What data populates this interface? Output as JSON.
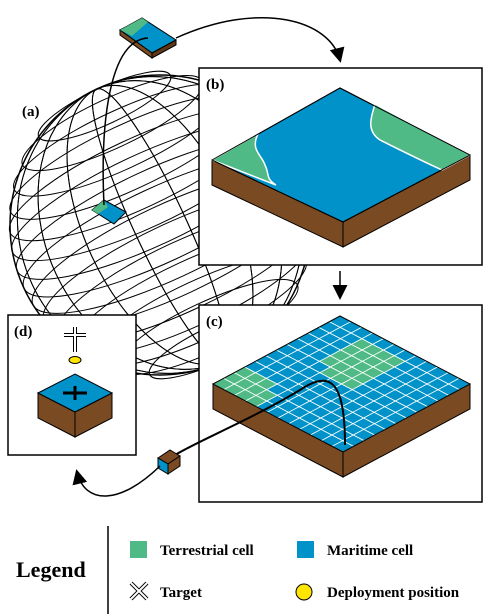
{
  "panels": {
    "a": "(a)",
    "b": "(b)",
    "c": "(c)",
    "d": "(d)"
  },
  "legend": {
    "title": "Legend",
    "items": [
      {
        "label": "Terrestrial cell"
      },
      {
        "label": "Maritime cell"
      },
      {
        "label": "Target"
      },
      {
        "label": "Deployment position"
      }
    ]
  }
}
